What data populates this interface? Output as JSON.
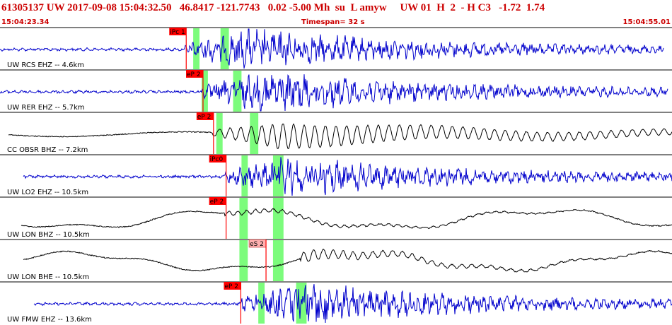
{
  "header": {
    "event_line": "61305137 UW 2017-09-08 15:04:32.50   46.8417 -121.7743   0.02 -5.00 Mh  su  L amyw     UW 01  H  2  - H C3   -1.72  1.74",
    "time_start": "15:04:23.34",
    "time_end": "15:04:55.01",
    "timespan": "Timespan=  32 s"
  },
  "colors": {
    "header_text": "#cc0000",
    "trace_blue": "#0000cc",
    "trace_black": "#000000",
    "pick_box": "#ff0000",
    "pick_box_light": "#ffb0b0",
    "window_green": "#7cfc7c",
    "separator": "#000000"
  },
  "channels": [
    {
      "label": "UW RCS EHZ -- 4.6km",
      "color": "blue",
      "pick": "iPc 1",
      "pick_time_s": 8.8,
      "windows_s": [
        [
          9.2,
          9.5
        ],
        [
          10.5,
          10.9
        ]
      ],
      "signal_start_s": 0.0,
      "signal_end_s": 31.6,
      "amp": 1.0,
      "style": "hf"
    },
    {
      "label": "UW RER EHZ -- 5.7km",
      "color": "blue",
      "pick": "eP 2",
      "pick_time_s": 9.6,
      "windows_s": [
        [
          9.6,
          9.9
        ],
        [
          11.1,
          11.5
        ]
      ],
      "signal_start_s": 0.0,
      "signal_end_s": 31.8,
      "amp": 1.0,
      "style": "hf"
    },
    {
      "label": "CC OBSR BHZ -- 7.2km",
      "color": "black",
      "pick": "eP 2",
      "pick_time_s": 10.1,
      "windows_s": [
        [
          10.3,
          10.6
        ],
        [
          11.9,
          12.3
        ]
      ],
      "signal_start_s": 0.4,
      "signal_end_s": 32.0,
      "amp": 0.85,
      "style": "mixed"
    },
    {
      "label": "UW LO2 EHZ -- 10.5km",
      "color": "blue",
      "pick": "iPc0",
      "pick_time_s": 10.7,
      "windows_s": [
        [
          11.5,
          11.8
        ],
        [
          13.0,
          13.5
        ]
      ],
      "signal_start_s": 1.1,
      "signal_end_s": 32.0,
      "amp": 0.95,
      "style": "hf"
    },
    {
      "label": "UW LON BHZ -- 10.5km",
      "color": "black",
      "pick": "eP 2",
      "pick_time_s": 10.7,
      "windows_s": [
        [
          11.4,
          11.8
        ],
        [
          13.0,
          13.5
        ]
      ],
      "signal_start_s": 1.0,
      "signal_end_s": 32.6,
      "amp": 0.8,
      "style": "lp"
    },
    {
      "label": "UW LON BHE -- 10.5km",
      "color": "black",
      "pick": "eS 2",
      "pick_time_s": 12.6,
      "windows_s": [
        [
          11.4,
          11.8
        ],
        [
          13.0,
          13.5
        ]
      ],
      "signal_start_s": 1.1,
      "signal_end_s": 32.6,
      "amp": 0.8,
      "style": "lp2"
    },
    {
      "label": "UW FMW EHZ -- 13.6km",
      "color": "blue",
      "pick": "eP 2",
      "pick_time_s": 11.4,
      "windows_s": [
        [
          12.3,
          12.6
        ],
        [
          14.1,
          14.6
        ]
      ],
      "signal_start_s": 1.6,
      "signal_end_s": 32.6,
      "amp": 1.0,
      "style": "hf"
    }
  ]
}
